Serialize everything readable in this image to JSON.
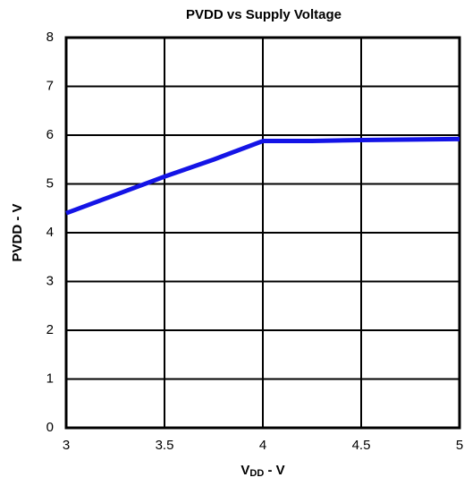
{
  "chart_data": {
    "type": "line",
    "title": "PVDD vs  Supply Voltage",
    "xlabel": {
      "main": "V",
      "sub": "DD",
      "rest": " - V"
    },
    "ylabel": "PVDD - V",
    "x": [
      3,
      3.5,
      3.75,
      4,
      4.25,
      4.5,
      5
    ],
    "series": [
      {
        "name": "PVDD",
        "color": "#1414e6",
        "values": [
          4.4,
          5.15,
          5.5,
          5.88,
          5.88,
          5.9,
          5.92
        ]
      }
    ],
    "xlim": [
      3,
      5
    ],
    "xticks": [
      3,
      3.5,
      4,
      4.5,
      5
    ],
    "ylim": [
      0,
      8
    ],
    "yticks": [
      0,
      1,
      2,
      3,
      4,
      5,
      6,
      7,
      8
    ],
    "grid": true
  }
}
